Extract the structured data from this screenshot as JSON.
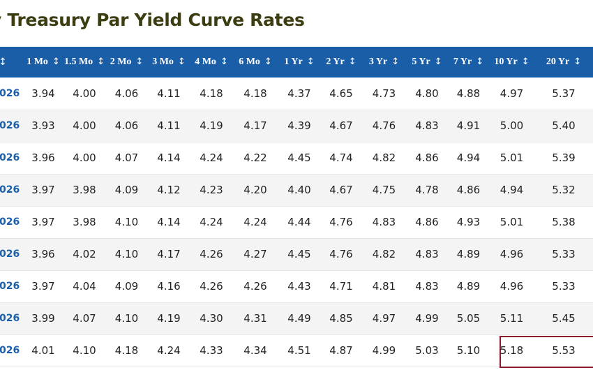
{
  "title": "y Treasury Par Yield Curve Rates",
  "colors": {
    "header_bg": "#1a5ea8",
    "title_text": "#3d3d12",
    "date_text": "#1a5ea8",
    "row_even": "#f4f4f4",
    "row_odd": "#ffffff",
    "highlight_border": "#8b1a2b"
  },
  "table": {
    "sort_icon": "↕",
    "headers": [
      "↕",
      "1 Mo",
      "1.5 Mo",
      "2 Mo",
      "3 Mo",
      "4 Mo",
      "6 Mo",
      "1 Yr",
      "2 Yr",
      "3 Yr",
      "5 Yr",
      "7 Yr",
      "10 Yr",
      "20 Yr"
    ],
    "rows": [
      {
        "date": "026",
        "values": [
          "3.94",
          "4.00",
          "4.06",
          "4.11",
          "4.18",
          "4.18",
          "4.37",
          "4.65",
          "4.73",
          "4.80",
          "4.88",
          "4.97",
          "5.37"
        ]
      },
      {
        "date": "026",
        "values": [
          "3.93",
          "4.00",
          "4.06",
          "4.11",
          "4.19",
          "4.17",
          "4.39",
          "4.67",
          "4.76",
          "4.83",
          "4.91",
          "5.00",
          "5.40"
        ]
      },
      {
        "date": "026",
        "values": [
          "3.96",
          "4.00",
          "4.07",
          "4.14",
          "4.24",
          "4.22",
          "4.45",
          "4.74",
          "4.82",
          "4.86",
          "4.94",
          "5.01",
          "5.39"
        ]
      },
      {
        "date": "026",
        "values": [
          "3.97",
          "3.98",
          "4.09",
          "4.12",
          "4.23",
          "4.20",
          "4.40",
          "4.67",
          "4.75",
          "4.78",
          "4.86",
          "4.94",
          "5.32"
        ]
      },
      {
        "date": "026",
        "values": [
          "3.97",
          "3.98",
          "4.10",
          "4.14",
          "4.24",
          "4.24",
          "4.44",
          "4.76",
          "4.83",
          "4.86",
          "4.93",
          "5.01",
          "5.38"
        ]
      },
      {
        "date": "026",
        "values": [
          "3.96",
          "4.02",
          "4.10",
          "4.17",
          "4.26",
          "4.27",
          "4.45",
          "4.76",
          "4.82",
          "4.83",
          "4.89",
          "4.96",
          "5.33"
        ]
      },
      {
        "date": "026",
        "values": [
          "3.97",
          "4.04",
          "4.09",
          "4.16",
          "4.26",
          "4.26",
          "4.43",
          "4.71",
          "4.81",
          "4.83",
          "4.89",
          "4.96",
          "5.33"
        ]
      },
      {
        "date": "026",
        "values": [
          "3.99",
          "4.07",
          "4.10",
          "4.19",
          "4.30",
          "4.31",
          "4.49",
          "4.85",
          "4.97",
          "4.99",
          "5.05",
          "5.11",
          "5.45"
        ]
      },
      {
        "date": "026",
        "values": [
          "4.01",
          "4.10",
          "4.18",
          "4.24",
          "4.33",
          "4.34",
          "4.51",
          "4.87",
          "4.99",
          "5.03",
          "5.10",
          "5.18",
          "5.53"
        ]
      }
    ]
  }
}
